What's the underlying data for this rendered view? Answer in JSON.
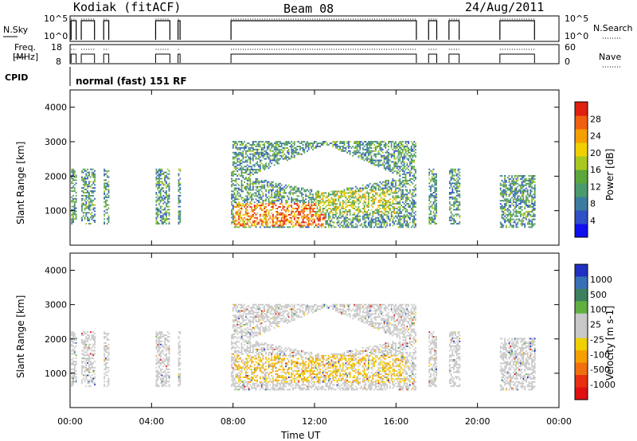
{
  "header": {
    "station": "Kodiak (fitACF)",
    "beam": "Beam 08",
    "date": "24/Aug/2011"
  },
  "strip_labels": {
    "nsky": "N.Sky",
    "nsearch": "N.Search",
    "nsky_ticks": [
      "10^5",
      "10^0"
    ],
    "nsearch_ticks": [
      "10^5",
      "10^0"
    ],
    "freq_line1": "Freq.",
    "freq_line2": "[MHz]",
    "freq_ticks": [
      "18",
      "8"
    ],
    "nave": "Nave",
    "nave_ticks": [
      "60",
      "0"
    ],
    "cpid": "CPID",
    "cpid_text": "normal (fast) 151 RF"
  },
  "chart_data": [
    {
      "type": "heatmap",
      "name": "power-panel",
      "ylabel": "Slant Range [km]",
      "xlabel": "Time UT",
      "xlim": [
        0,
        24
      ],
      "ylim": [
        0,
        4500
      ],
      "x_ticks": [
        "00:00",
        "04:00",
        "08:00",
        "12:00",
        "16:00",
        "20:00",
        "00:00"
      ],
      "y_ticks": [
        1000,
        2000,
        3000,
        4000
      ],
      "colorbar": {
        "label": "Power [dB]",
        "ticks": [
          4,
          8,
          12,
          16,
          20,
          24,
          28
        ],
        "range": [
          0,
          32
        ],
        "colors": [
          "#1010f0",
          "#3050c8",
          "#3c7ca0",
          "#4a9a6e",
          "#5aa83c",
          "#a8c820",
          "#f0d000",
          "#f5a000",
          "#f06010",
          "#e02010"
        ]
      }
    },
    {
      "type": "heatmap",
      "name": "velocity-panel",
      "ylabel": "Slant Range [km]",
      "xlabel": "Time UT",
      "xlim": [
        0,
        24
      ],
      "ylim": [
        0,
        4500
      ],
      "x_ticks": [
        "00:00",
        "04:00",
        "08:00",
        "12:00",
        "16:00",
        "20:00",
        "00:00"
      ],
      "y_ticks": [
        1000,
        2000,
        3000,
        4000
      ],
      "colorbar": {
        "label": "Velocity [m s-1]",
        "tick_labels": [
          "1000",
          "500",
          "100",
          "25",
          "-25",
          "-100",
          "-500",
          "-1000"
        ],
        "colors": [
          "#2030c0",
          "#3870b8",
          "#3c8060",
          "#60b040",
          "#c8c8c8",
          "#c8c8c8",
          "#f0d000",
          "#f5a000",
          "#f07010",
          "#e83010",
          "#e01010"
        ]
      }
    }
  ],
  "x_axis_label": "Time UT"
}
